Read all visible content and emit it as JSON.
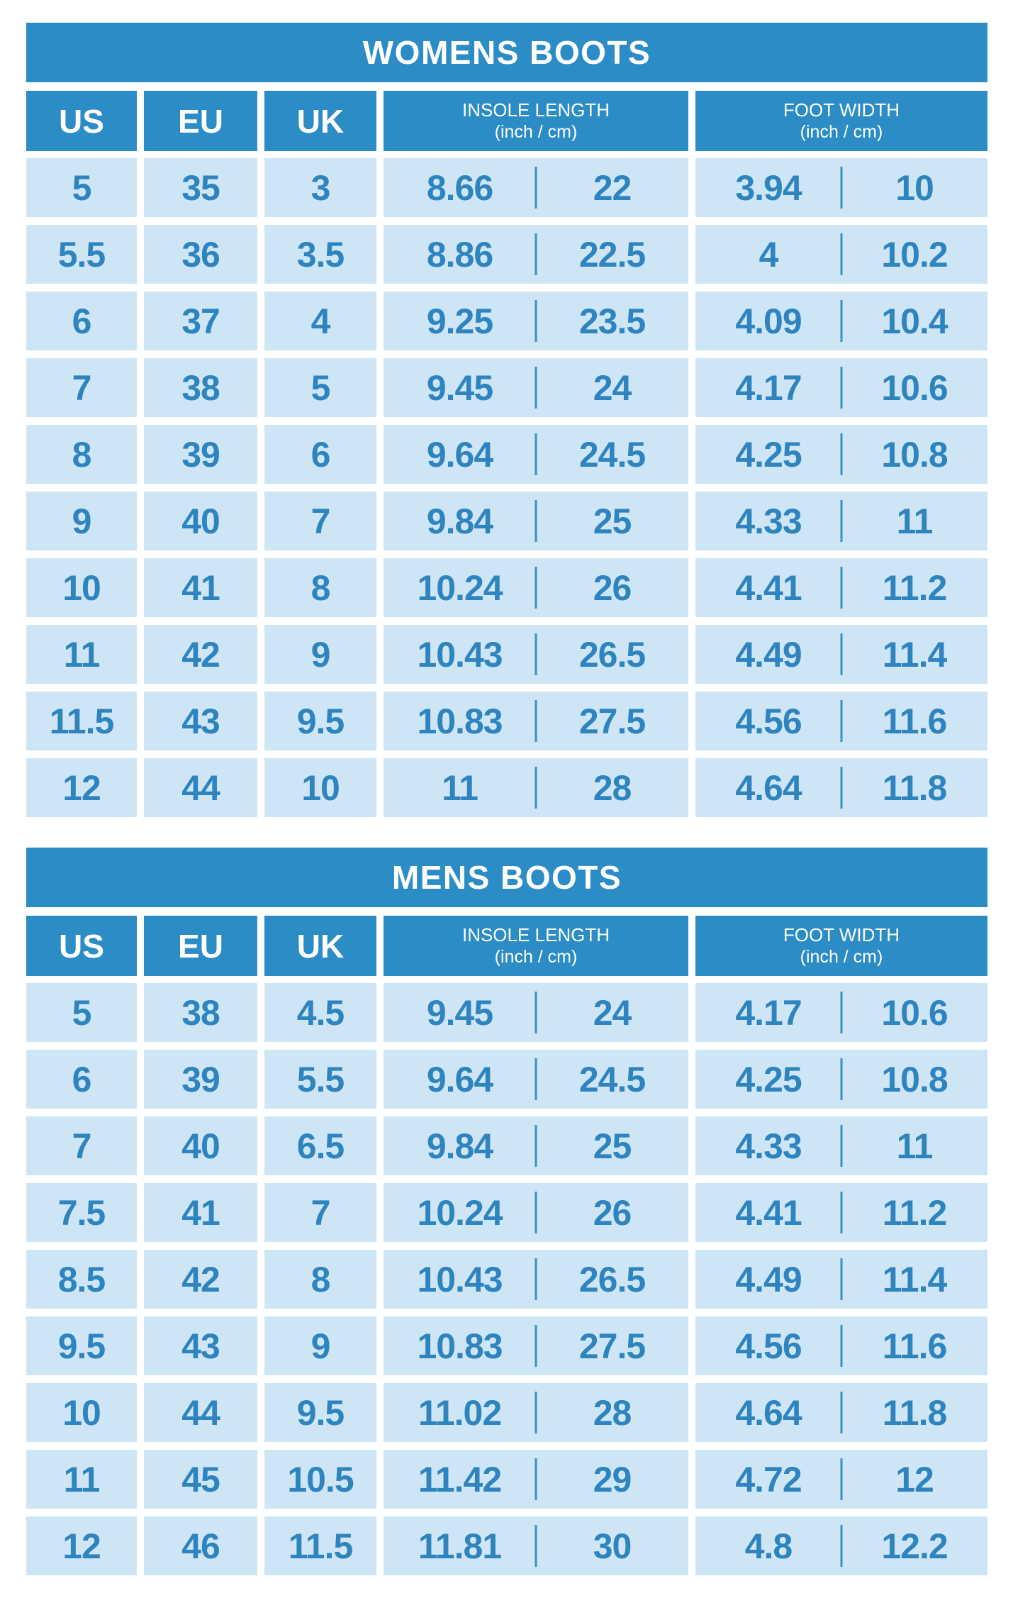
{
  "palette": {
    "header_blue": "#2B8CC6",
    "cell_light_blue": "#CEE5F6",
    "value_text_blue": "#2E84BE",
    "divider_blue": "#3C8FC5",
    "background": "#FFFFFF",
    "title_text": "#FFFFFF"
  },
  "header_labels": {
    "us": "US",
    "eu": "EU",
    "uk": "UK",
    "insole_line1": "INSOLE LENGTH",
    "insole_line2": "(inch / cm)",
    "foot_line1": "FOOT WIDTH",
    "foot_line2": "(inch / cm)"
  },
  "chart_data": [
    {
      "type": "table",
      "title": "WOMENS BOOTS",
      "columns": [
        "US",
        "EU",
        "UK",
        "INSOLE LENGTH (inch)",
        "INSOLE LENGTH (cm)",
        "FOOT WIDTH (inch)",
        "FOOT WIDTH (cm)"
      ],
      "rows": [
        [
          "5",
          "35",
          "3",
          "8.66",
          "22",
          "3.94",
          "10"
        ],
        [
          "5.5",
          "36",
          "3.5",
          "8.86",
          "22.5",
          "4",
          "10.2"
        ],
        [
          "6",
          "37",
          "4",
          "9.25",
          "23.5",
          "4.09",
          "10.4"
        ],
        [
          "7",
          "38",
          "5",
          "9.45",
          "24",
          "4.17",
          "10.6"
        ],
        [
          "8",
          "39",
          "6",
          "9.64",
          "24.5",
          "4.25",
          "10.8"
        ],
        [
          "9",
          "40",
          "7",
          "9.84",
          "25",
          "4.33",
          "11"
        ],
        [
          "10",
          "41",
          "8",
          "10.24",
          "26",
          "4.41",
          "11.2"
        ],
        [
          "11",
          "42",
          "9",
          "10.43",
          "26.5",
          "4.49",
          "11.4"
        ],
        [
          "11.5",
          "43",
          "9.5",
          "10.83",
          "27.5",
          "4.56",
          "11.6"
        ],
        [
          "12",
          "44",
          "10",
          "11",
          "28",
          "4.64",
          "11.8"
        ]
      ]
    },
    {
      "type": "table",
      "title": "MENS BOOTS",
      "columns": [
        "US",
        "EU",
        "UK",
        "INSOLE LENGTH (inch)",
        "INSOLE LENGTH (cm)",
        "FOOT WIDTH (inch)",
        "FOOT WIDTH (cm)"
      ],
      "rows": [
        [
          "5",
          "38",
          "4.5",
          "9.45",
          "24",
          "4.17",
          "10.6"
        ],
        [
          "6",
          "39",
          "5.5",
          "9.64",
          "24.5",
          "4.25",
          "10.8"
        ],
        [
          "7",
          "40",
          "6.5",
          "9.84",
          "25",
          "4.33",
          "11"
        ],
        [
          "7.5",
          "41",
          "7",
          "10.24",
          "26",
          "4.41",
          "11.2"
        ],
        [
          "8.5",
          "42",
          "8",
          "10.43",
          "26.5",
          "4.49",
          "11.4"
        ],
        [
          "9.5",
          "43",
          "9",
          "10.83",
          "27.5",
          "4.56",
          "11.6"
        ],
        [
          "10",
          "44",
          "9.5",
          "11.02",
          "28",
          "4.64",
          "11.8"
        ],
        [
          "11",
          "45",
          "10.5",
          "11.42",
          "29",
          "4.72",
          "12"
        ],
        [
          "12",
          "46",
          "11.5",
          "11.81",
          "30",
          "4.8",
          "12.2"
        ]
      ]
    }
  ]
}
